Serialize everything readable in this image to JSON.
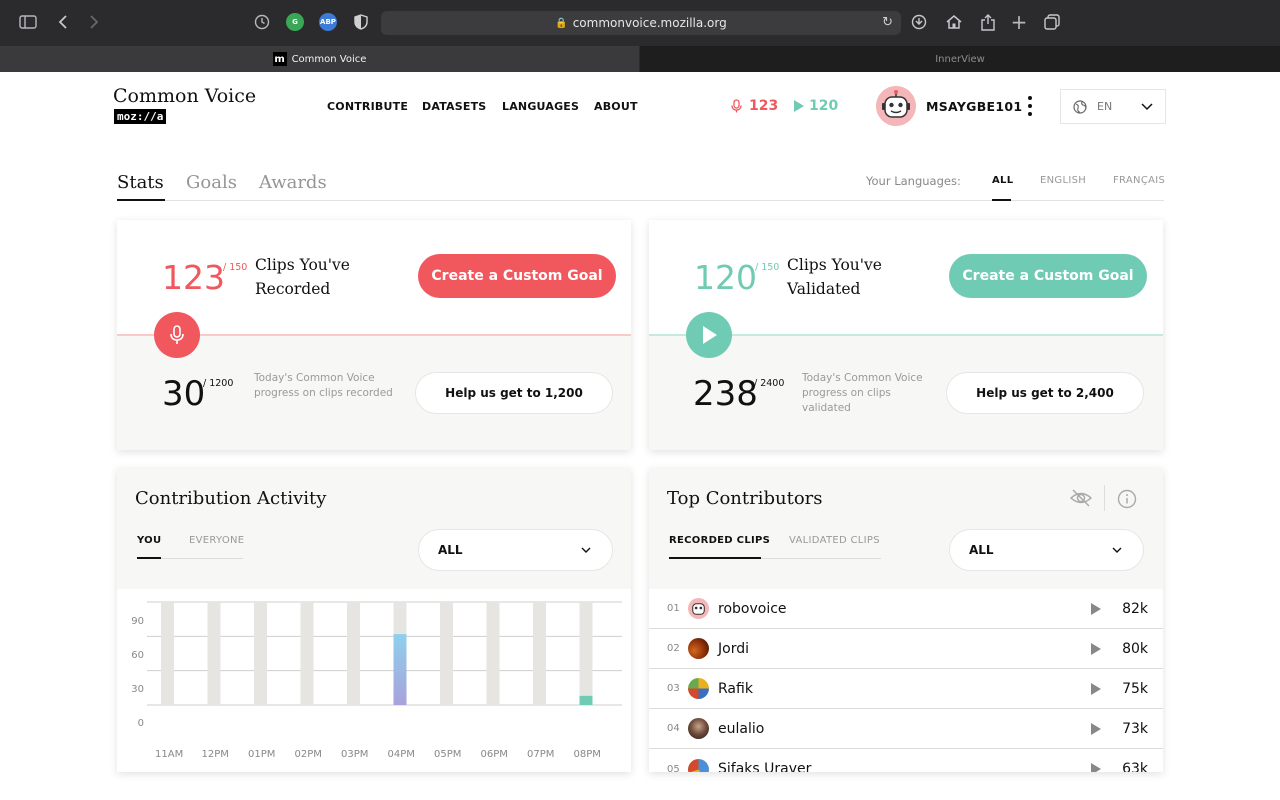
{
  "browser": {
    "url": "commonvoice.mozilla.org",
    "tabs": [
      {
        "label": "Common Voice",
        "favicon": "m"
      },
      {
        "label": "InnerView"
      }
    ],
    "extensions": [
      "G",
      "ABP"
    ]
  },
  "header": {
    "logo_title": "Common Voice",
    "logo_sub": "moz://a",
    "nav": [
      "CONTRIBUTE",
      "DATASETS",
      "LANGUAGES",
      "ABOUT"
    ],
    "recorded_count": "123",
    "validated_count": "120",
    "username": "MSAYGBE101",
    "language": "EN"
  },
  "page_tabs": [
    "Stats",
    "Goals",
    "Awards"
  ],
  "your_languages": {
    "label": "Your Languages:",
    "options": [
      "ALL",
      "ENGLISH",
      "FRANÇAIS"
    ]
  },
  "recorded_card": {
    "count": "123",
    "goal": "/ 150",
    "title_line1": "Clips You've",
    "title_line2": "Recorded",
    "button": "Create a Custom Goal",
    "today_count": "30",
    "today_goal": "/ 1200",
    "today_text": "Today's Common Voice progress on clips recorded",
    "help_button": "Help us get to 1,200"
  },
  "validated_card": {
    "count": "120",
    "goal": "/ 150",
    "title_line1": "Clips You've",
    "title_line2": "Validated",
    "button": "Create a Custom Goal",
    "today_count": "238",
    "today_goal": "/ 2400",
    "today_text": "Today's Common Voice progress on clips validated",
    "help_button": "Help us get to 2,400"
  },
  "activity": {
    "title": "Contribution Activity",
    "tabs": [
      "YOU",
      "EVERYONE"
    ],
    "dropdown": "ALL",
    "chart_data": {
      "type": "bar",
      "categories": [
        "11AM",
        "12PM",
        "01PM",
        "02PM",
        "03PM",
        "04PM",
        "05PM",
        "06PM",
        "07PM",
        "08PM"
      ],
      "values": [
        0,
        0,
        0,
        0,
        0,
        62,
        0,
        0,
        0,
        8
      ],
      "ylim": [
        0,
        90
      ],
      "yticks": [
        90,
        60,
        30,
        0
      ],
      "grid": true
    }
  },
  "top_contributors": {
    "title": "Top Contributors",
    "tabs": [
      "RECORDED CLIPS",
      "VALIDATED CLIPS"
    ],
    "dropdown": "ALL",
    "rows": [
      {
        "rank": "01",
        "name": "robovoice",
        "count": "82k"
      },
      {
        "rank": "02",
        "name": "Jordi",
        "count": "80k"
      },
      {
        "rank": "03",
        "name": "Rafik",
        "count": "75k"
      },
      {
        "rank": "04",
        "name": "eulalio",
        "count": "73k"
      },
      {
        "rank": "05",
        "name": "Sifaks Uraver",
        "count": "63k"
      }
    ]
  },
  "colors": {
    "record": "#f0585e",
    "validate": "#6fcbb4",
    "bar_empty": "#e6e5e1",
    "bar_active_top": "#8fd0ec",
    "bar_active_bottom": "#a8a2dc"
  }
}
